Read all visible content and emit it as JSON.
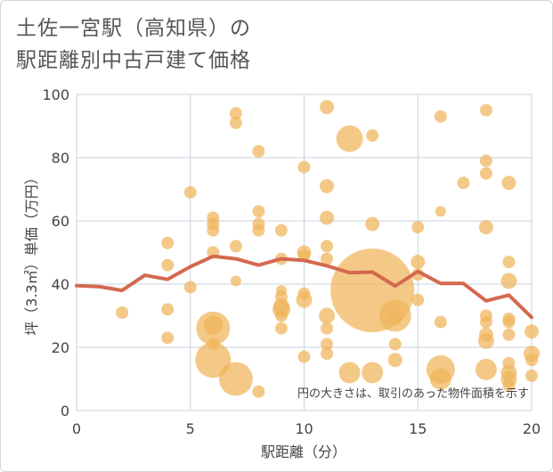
{
  "title": {
    "line1": "土佐一宮駅（高知県）の",
    "line2": "駅距離別中古戸建て価格"
  },
  "chart_data": {
    "type": "scatter",
    "xlabel": "駅距離（分）",
    "ylabel": "坪（3.3㎡）単価（万円）",
    "xlim": [
      0,
      20
    ],
    "ylim": [
      0,
      100
    ],
    "xticks": [
      0,
      5,
      10,
      15,
      20
    ],
    "yticks": [
      0,
      20,
      40,
      60,
      80,
      100
    ],
    "grid": true,
    "annotation": "円の大きさは、取引のあった物件面積を示す",
    "colors": {
      "bubble": "#f0b45a",
      "line": "#d4694f",
      "grid": "#c9d3dc"
    },
    "points": [
      {
        "x": 2,
        "y": 31,
        "s": 7
      },
      {
        "x": 4,
        "y": 53,
        "s": 7
      },
      {
        "x": 4,
        "y": 46,
        "s": 7
      },
      {
        "x": 4,
        "y": 32,
        "s": 7
      },
      {
        "x": 4,
        "y": 23,
        "s": 7
      },
      {
        "x": 5,
        "y": 69,
        "s": 7
      },
      {
        "x": 5,
        "y": 39,
        "s": 7
      },
      {
        "x": 6,
        "y": 61,
        "s": 7
      },
      {
        "x": 6,
        "y": 59,
        "s": 7
      },
      {
        "x": 6,
        "y": 57,
        "s": 7
      },
      {
        "x": 6,
        "y": 50,
        "s": 7
      },
      {
        "x": 6,
        "y": 27,
        "s": 11
      },
      {
        "x": 6,
        "y": 26,
        "s": 19
      },
      {
        "x": 6,
        "y": 21,
        "s": 7
      },
      {
        "x": 6,
        "y": 16,
        "s": 20
      },
      {
        "x": 7,
        "y": 94,
        "s": 7
      },
      {
        "x": 7,
        "y": 91,
        "s": 7
      },
      {
        "x": 7,
        "y": 52,
        "s": 7
      },
      {
        "x": 7,
        "y": 41,
        "s": 6
      },
      {
        "x": 7,
        "y": 10,
        "s": 19
      },
      {
        "x": 8,
        "y": 82,
        "s": 7
      },
      {
        "x": 8,
        "y": 63,
        "s": 7
      },
      {
        "x": 8,
        "y": 59,
        "s": 7
      },
      {
        "x": 8,
        "y": 57,
        "s": 7
      },
      {
        "x": 8,
        "y": 6,
        "s": 7
      },
      {
        "x": 9,
        "y": 57,
        "s": 7
      },
      {
        "x": 9,
        "y": 48,
        "s": 7
      },
      {
        "x": 9,
        "y": 38,
        "s": 6
      },
      {
        "x": 9,
        "y": 36,
        "s": 7
      },
      {
        "x": 9,
        "y": 33,
        "s": 9
      },
      {
        "x": 9,
        "y": 32,
        "s": 10
      },
      {
        "x": 9,
        "y": 30,
        "s": 7
      },
      {
        "x": 9,
        "y": 26,
        "s": 7
      },
      {
        "x": 10,
        "y": 77,
        "s": 7
      },
      {
        "x": 10,
        "y": 50,
        "s": 8
      },
      {
        "x": 10,
        "y": 49,
        "s": 7
      },
      {
        "x": 10,
        "y": 37,
        "s": 7
      },
      {
        "x": 10,
        "y": 35,
        "s": 9
      },
      {
        "x": 10,
        "y": 17,
        "s": 7
      },
      {
        "x": 11,
        "y": 96,
        "s": 8
      },
      {
        "x": 11,
        "y": 71,
        "s": 8
      },
      {
        "x": 11,
        "y": 61,
        "s": 8
      },
      {
        "x": 11,
        "y": 52,
        "s": 7
      },
      {
        "x": 11,
        "y": 48,
        "s": 7
      },
      {
        "x": 11,
        "y": 30,
        "s": 9
      },
      {
        "x": 11,
        "y": 26,
        "s": 7
      },
      {
        "x": 11,
        "y": 21,
        "s": 7
      },
      {
        "x": 11,
        "y": 18,
        "s": 7
      },
      {
        "x": 12,
        "y": 86,
        "s": 15
      },
      {
        "x": 12,
        "y": 12,
        "s": 12
      },
      {
        "x": 13,
        "y": 87,
        "s": 7
      },
      {
        "x": 13,
        "y": 59,
        "s": 8
      },
      {
        "x": 13,
        "y": 38,
        "s": 47
      },
      {
        "x": 13,
        "y": 12,
        "s": 12
      },
      {
        "x": 14,
        "y": 30,
        "s": 18
      },
      {
        "x": 14,
        "y": 29,
        "s": 7
      },
      {
        "x": 14,
        "y": 21,
        "s": 7
      },
      {
        "x": 14,
        "y": 16,
        "s": 8
      },
      {
        "x": 15,
        "y": 58,
        "s": 7
      },
      {
        "x": 15,
        "y": 47,
        "s": 8
      },
      {
        "x": 15,
        "y": 43,
        "s": 7
      },
      {
        "x": 15,
        "y": 35,
        "s": 7
      },
      {
        "x": 16,
        "y": 93,
        "s": 7
      },
      {
        "x": 16,
        "y": 63,
        "s": 6
      },
      {
        "x": 16,
        "y": 28,
        "s": 7
      },
      {
        "x": 16,
        "y": 13,
        "s": 16
      },
      {
        "x": 16,
        "y": 10,
        "s": 12
      },
      {
        "x": 17,
        "y": 72,
        "s": 7
      },
      {
        "x": 18,
        "y": 95,
        "s": 7
      },
      {
        "x": 18,
        "y": 79,
        "s": 7
      },
      {
        "x": 18,
        "y": 75,
        "s": 7
      },
      {
        "x": 18,
        "y": 58,
        "s": 8
      },
      {
        "x": 18,
        "y": 30,
        "s": 7
      },
      {
        "x": 18,
        "y": 28,
        "s": 7
      },
      {
        "x": 18,
        "y": 24,
        "s": 8
      },
      {
        "x": 18,
        "y": 22,
        "s": 9
      },
      {
        "x": 18,
        "y": 13,
        "s": 12
      },
      {
        "x": 19,
        "y": 72,
        "s": 8
      },
      {
        "x": 19,
        "y": 47,
        "s": 7
      },
      {
        "x": 19,
        "y": 41,
        "s": 9
      },
      {
        "x": 19,
        "y": 29,
        "s": 7
      },
      {
        "x": 19,
        "y": 28,
        "s": 7
      },
      {
        "x": 19,
        "y": 24,
        "s": 7
      },
      {
        "x": 19,
        "y": 15,
        "s": 7
      },
      {
        "x": 19,
        "y": 12,
        "s": 9
      },
      {
        "x": 19,
        "y": 10,
        "s": 9
      },
      {
        "x": 19,
        "y": 8,
        "s": 7
      },
      {
        "x": 20,
        "y": 25,
        "s": 8
      },
      {
        "x": 20,
        "y": 18,
        "s": 9
      },
      {
        "x": 20,
        "y": 16,
        "s": 7
      },
      {
        "x": 20,
        "y": 11,
        "s": 7
      }
    ],
    "trend": {
      "x": [
        0,
        1,
        2,
        3,
        4,
        5,
        6,
        7,
        8,
        9,
        10,
        11,
        12,
        13,
        14,
        15,
        16,
        17,
        18,
        19,
        20
      ],
      "y": [
        39.5,
        39.2,
        38.0,
        42.8,
        41.5,
        45.5,
        48.8,
        48.0,
        46.0,
        48.0,
        47.5,
        45.8,
        43.6,
        43.8,
        39.4,
        44.0,
        40.2,
        40.2,
        34.7,
        36.5,
        29.5
      ]
    }
  }
}
